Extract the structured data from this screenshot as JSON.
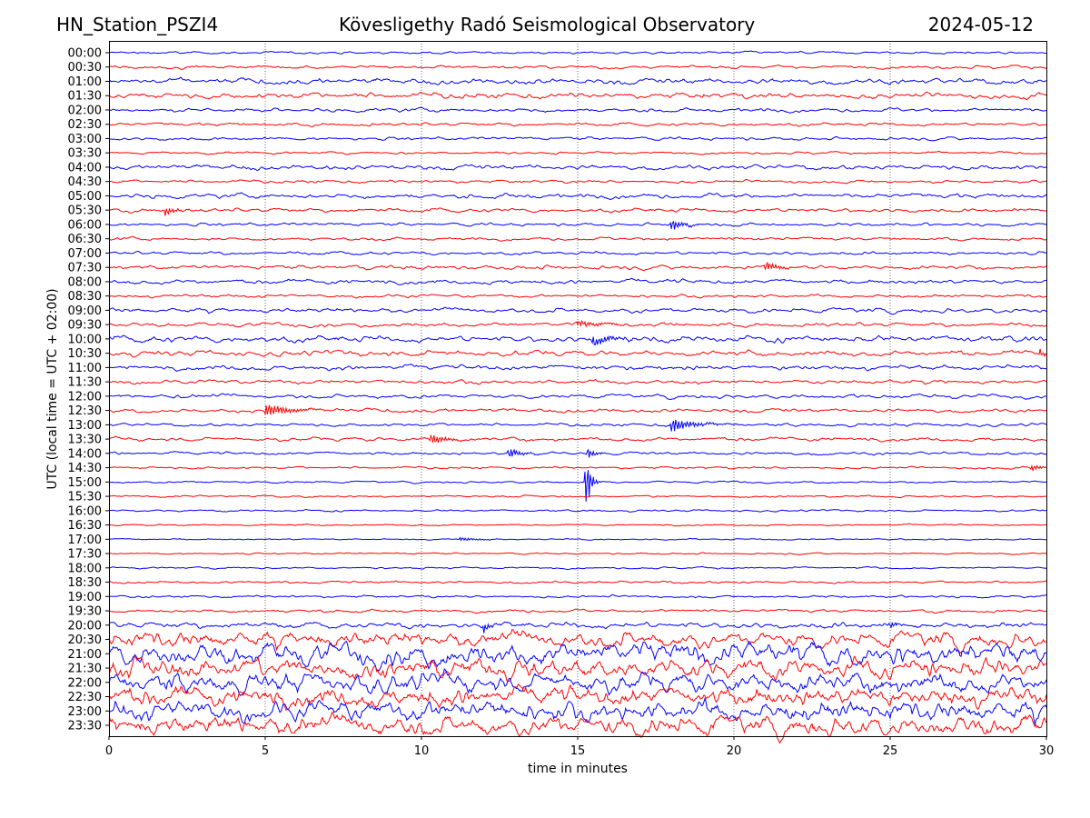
{
  "chart_data": {
    "type": "line",
    "station": "HN_Station_PSZI4",
    "title": "Kövesligethy Radó Seismological Observatory",
    "date": "2024-05-12",
    "xlabel": "time in minutes",
    "ylabel": "UTC (local time = UTC + 02:00)",
    "xlim": [
      0,
      30
    ],
    "xticks": [
      0,
      5,
      10,
      15,
      20,
      25,
      30
    ],
    "grid": "vertical dotted at 5-minute ticks",
    "row_labels": [
      "00:00",
      "00:30",
      "01:00",
      "01:30",
      "02:00",
      "02:30",
      "03:00",
      "03:30",
      "04:00",
      "04:30",
      "05:00",
      "05:30",
      "06:00",
      "06:30",
      "07:00",
      "07:30",
      "08:00",
      "08:30",
      "09:00",
      "09:30",
      "10:00",
      "10:30",
      "11:00",
      "11:30",
      "12:00",
      "12:30",
      "13:00",
      "13:30",
      "14:00",
      "14:30",
      "15:00",
      "15:30",
      "16:00",
      "16:30",
      "17:00",
      "17:30",
      "18:00",
      "18:30",
      "19:00",
      "19:30",
      "20:00",
      "20:30",
      "21:00",
      "21:30",
      "22:00",
      "22:30",
      "23:00",
      "23:30"
    ],
    "trace_colors": [
      "#0000ff",
      "#ff0000"
    ],
    "noise_level": [
      0.6,
      0.8,
      1.5,
      1.5,
      1.0,
      0.8,
      0.8,
      0.6,
      1.3,
      0.8,
      1.2,
      1.0,
      0.8,
      0.8,
      0.8,
      1.0,
      1.2,
      0.8,
      1.2,
      1.0,
      1.6,
      1.4,
      1.3,
      1.0,
      1.0,
      1.0,
      0.8,
      1.0,
      0.8,
      0.6,
      0.5,
      0.5,
      0.5,
      0.4,
      0.4,
      0.4,
      0.5,
      0.6,
      0.6,
      0.8,
      1.5,
      4.0,
      5.5,
      5.0,
      5.0,
      5.0,
      5.0,
      5.0
    ],
    "events": [
      {
        "row": 11,
        "minute": 1.8,
        "amplitude": 5,
        "duration": 0.5
      },
      {
        "row": 12,
        "minute": 18.0,
        "amplitude": 7,
        "duration": 0.6
      },
      {
        "row": 15,
        "minute": 21.0,
        "amplitude": 5,
        "duration": 0.8
      },
      {
        "row": 19,
        "minute": 15.0,
        "amplitude": 3,
        "duration": 1.5
      },
      {
        "row": 20,
        "minute": 15.5,
        "amplitude": 6,
        "duration": 1.0
      },
      {
        "row": 21,
        "minute": 29.8,
        "amplitude": 5,
        "duration": 0.3
      },
      {
        "row": 25,
        "minute": 5.0,
        "amplitude": 8,
        "duration": 1.2
      },
      {
        "row": 26,
        "minute": 18.0,
        "amplitude": 7,
        "duration": 1.3
      },
      {
        "row": 27,
        "minute": 10.3,
        "amplitude": 5,
        "duration": 0.9
      },
      {
        "row": 28,
        "minute": 12.8,
        "amplitude": 6,
        "duration": 0.6
      },
      {
        "row": 28,
        "minute": 15.3,
        "amplitude": 6,
        "duration": 0.4
      },
      {
        "row": 29,
        "minute": 29.5,
        "amplitude": 4,
        "duration": 0.5
      },
      {
        "row": 30,
        "minute": 15.25,
        "amplitude": 40,
        "duration": 0.25
      },
      {
        "row": 34,
        "minute": 11.2,
        "amplitude": 2,
        "duration": 1.2
      },
      {
        "row": 40,
        "minute": 12.0,
        "amplitude": 6,
        "duration": 0.3
      },
      {
        "row": 40,
        "minute": 25.0,
        "amplitude": 5,
        "duration": 0.3
      }
    ]
  }
}
